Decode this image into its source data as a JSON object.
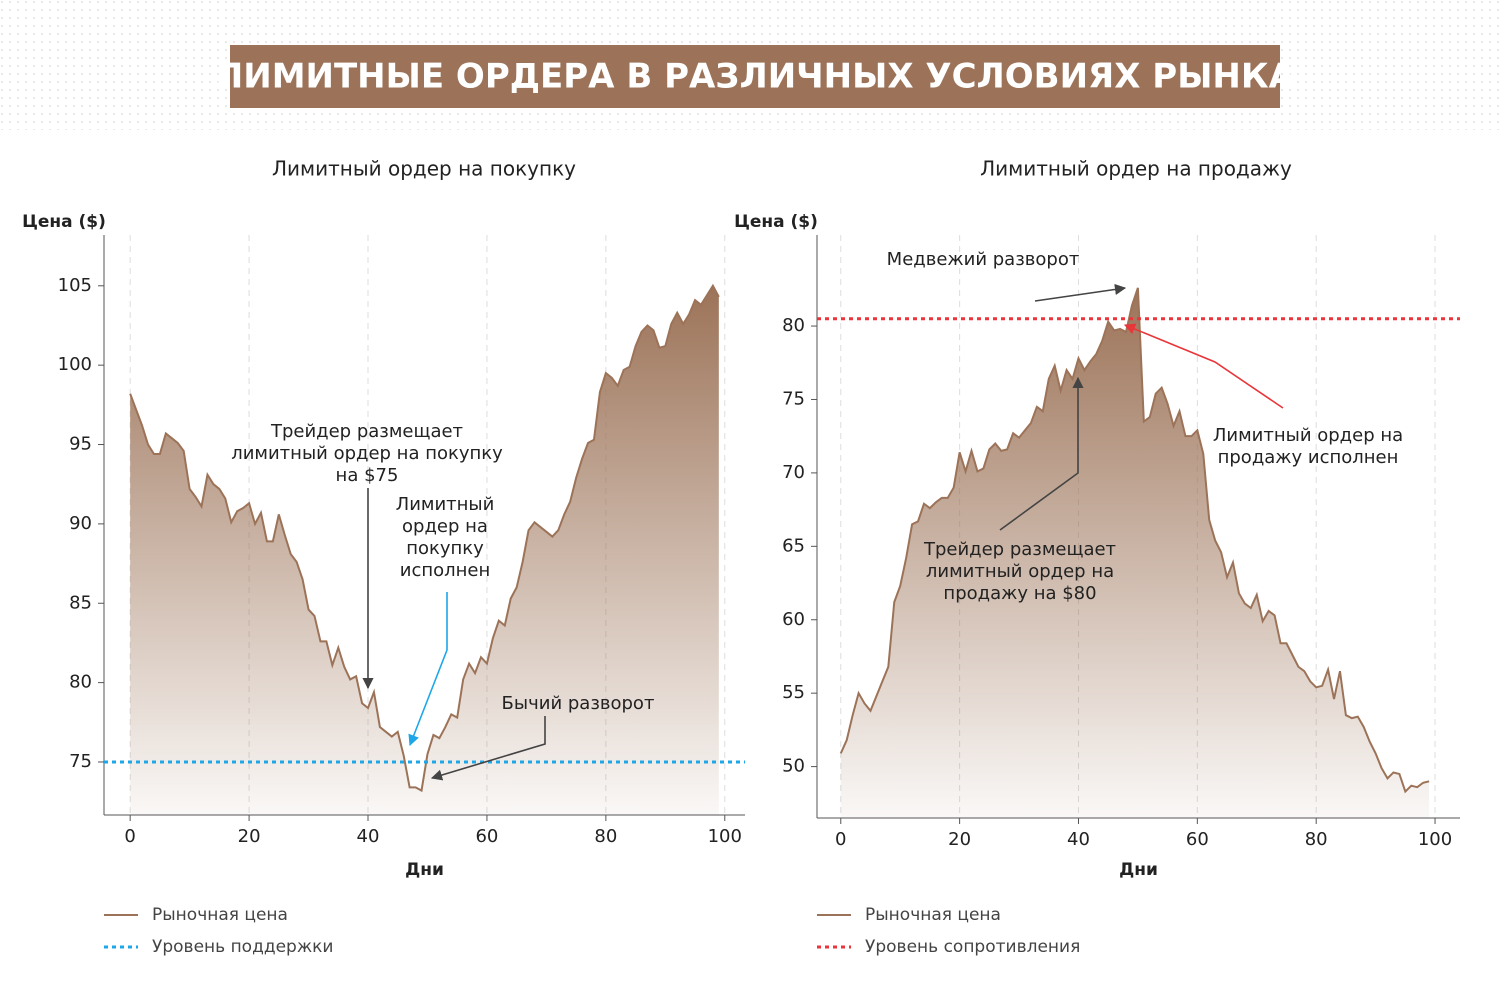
{
  "title": "ЛИМИТНЫЕ ОРДЕРА В РАЗЛИЧНЫХ УСЛОВИЯХ РЫНКА",
  "chart_data": [
    {
      "type": "area",
      "title": "Лимитный ордер на покупку",
      "x_label": "Дни",
      "y_label": "Цена ($)",
      "x": [
        0,
        1,
        2,
        3,
        4,
        5,
        6,
        7,
        8,
        9,
        10,
        11,
        12,
        13,
        14,
        15,
        16,
        17,
        18,
        19,
        20,
        21,
        22,
        23,
        24,
        25,
        26,
        27,
        28,
        29,
        30,
        31,
        32,
        33,
        34,
        35,
        36,
        37,
        38,
        39,
        40,
        41,
        42,
        43,
        44,
        45,
        46,
        47,
        48,
        49,
        50,
        51,
        52,
        53,
        54,
        55,
        56,
        57,
        58,
        59,
        60,
        61,
        62,
        63,
        64,
        65,
        66,
        67,
        68,
        69,
        70,
        71,
        72,
        73,
        74,
        75,
        76,
        77,
        78,
        79,
        80,
        81,
        82,
        83,
        84,
        85,
        86,
        87,
        88,
        89,
        90,
        91,
        92,
        93,
        94,
        95,
        96,
        97,
        98,
        99
      ],
      "series": [
        {
          "name": "Рыночная цена",
          "color": "#9c7358",
          "values": [
            98.2,
            97.2,
            96.2,
            95,
            94.4,
            94.4,
            95.7,
            95.4,
            95.1,
            94.6,
            92.2,
            91.7,
            91.1,
            93.1,
            92.5,
            92.2,
            91.6,
            90.1,
            90.8,
            91.0,
            91.3,
            90.0,
            90.7,
            88.9,
            88.9,
            90.6,
            89.3,
            88.1,
            87.6,
            86.5,
            84.6,
            84.2,
            82.6,
            82.6,
            81.1,
            82.2,
            81.0,
            80.2,
            80.4,
            78.7,
            78.4,
            79.4,
            77.2,
            76.9,
            76.6,
            76.9,
            75.4,
            73.4,
            73.4,
            73.2,
            75.5,
            76.7,
            76.5,
            77.2,
            78.0,
            77.8,
            80.2,
            81.2,
            80.6,
            81.6,
            81.2,
            82.8,
            83.9,
            83.6,
            85.3,
            86.0,
            87.6,
            89.6,
            90.1,
            89.8,
            89.5,
            89.2,
            89.6,
            90.6,
            91.4,
            92.9,
            94.1,
            95.1,
            95.3,
            98.3,
            99.5,
            99.2,
            98.7,
            99.7,
            99.9,
            101.2,
            102.1,
            102.5,
            102.2,
            101.1,
            101.2,
            102.6,
            103.3,
            102.6,
            103.2,
            104.1,
            103.8,
            104.4,
            105.0,
            104.3
          ]
        }
      ],
      "reference_line": {
        "name": "Уровень поддержки",
        "value": 75,
        "color": "#1ea7e8"
      },
      "xlim": [
        -4.4,
        103.4
      ],
      "ylim": [
        71.66,
        108.2
      ],
      "xticks": [
        0,
        20,
        40,
        60,
        80,
        100
      ],
      "yticks": [
        75,
        80,
        85,
        90,
        95,
        100,
        105
      ],
      "grid": "x",
      "annotations": [
        [
          "Трейдер размещает",
          "лимитный ордер на покупку",
          "на $75"
        ],
        [
          "Лимитный",
          "ордер на",
          "покупку",
          "исполнен"
        ],
        [
          "Бычий разворот"
        ]
      ]
    },
    {
      "type": "area",
      "title": "Лимитный ордер на продажу",
      "x_label": "Дни",
      "y_label": "Цена ($)",
      "x": [
        0,
        1,
        2,
        3,
        4,
        5,
        6,
        7,
        8,
        9,
        10,
        11,
        12,
        13,
        14,
        15,
        16,
        17,
        18,
        19,
        20,
        21,
        22,
        23,
        24,
        25,
        26,
        27,
        28,
        29,
        30,
        31,
        32,
        33,
        34,
        35,
        36,
        37,
        38,
        39,
        40,
        41,
        42,
        43,
        44,
        45,
        46,
        47,
        48,
        49,
        50,
        51,
        52,
        53,
        54,
        55,
        56,
        57,
        58,
        59,
        60,
        61,
        62,
        63,
        64,
        65,
        66,
        67,
        68,
        69,
        70,
        71,
        72,
        73,
        74,
        75,
        76,
        77,
        78,
        79,
        80,
        81,
        82,
        83,
        84,
        85,
        86,
        87,
        88,
        89,
        90,
        91,
        92,
        93,
        94,
        95,
        96,
        97,
        98,
        99
      ],
      "series": [
        {
          "name": "Рыночная цена",
          "color": "#9c7358",
          "values": [
            50.9,
            51.8,
            53.5,
            55.0,
            54.3,
            53.8,
            54.8,
            55.8,
            56.8,
            61.2,
            62.3,
            64.2,
            66.5,
            66.7,
            67.9,
            67.6,
            68.0,
            68.3,
            68.3,
            69.0,
            71.4,
            70.1,
            71.5,
            70.1,
            70.3,
            71.6,
            72.0,
            71.5,
            71.6,
            72.7,
            72.4,
            72.9,
            73.4,
            74.5,
            74.2,
            76.4,
            77.3,
            75.6,
            77.0,
            76.4,
            77.8,
            77.0,
            77.6,
            78.1,
            79.0,
            80.3,
            79.7,
            79.8,
            79.6,
            81.4,
            82.6,
            73.5,
            73.8,
            75.4,
            75.8,
            74.7,
            73.2,
            74.2,
            72.5,
            72.5,
            72.9,
            71.3,
            66.8,
            65.4,
            64.6,
            62.9,
            63.9,
            61.8,
            61.1,
            60.8,
            61.7,
            59.9,
            60.6,
            60.3,
            58.4,
            58.4,
            57.6,
            56.8,
            56.5,
            55.8,
            55.4,
            55.5,
            56.6,
            54.6,
            56.5,
            53.5,
            53.3,
            53.4,
            52.7,
            51.7,
            50.9,
            49.9,
            49.2,
            49.6,
            49.5,
            48.3,
            48.7,
            48.6,
            48.9,
            49.0
          ]
        }
      ],
      "reference_line": {
        "name": "Уровень сопротивления",
        "value": 80.5,
        "color": "#e8363a"
      },
      "xlim": [
        -4.0,
        104.2
      ],
      "ylim": [
        46.5,
        86.2
      ],
      "xticks": [
        0,
        20,
        40,
        60,
        80,
        100
      ],
      "yticks": [
        50,
        55,
        60,
        65,
        70,
        75,
        80
      ],
      "grid": "x",
      "annotations": [
        [
          "Медвежий разворот"
        ],
        [
          "Лимитный ордер на",
          "продажу исполнен"
        ],
        [
          "Трейдер размещает",
          "лимитный ордер на",
          "продажу на $80"
        ]
      ]
    }
  ]
}
